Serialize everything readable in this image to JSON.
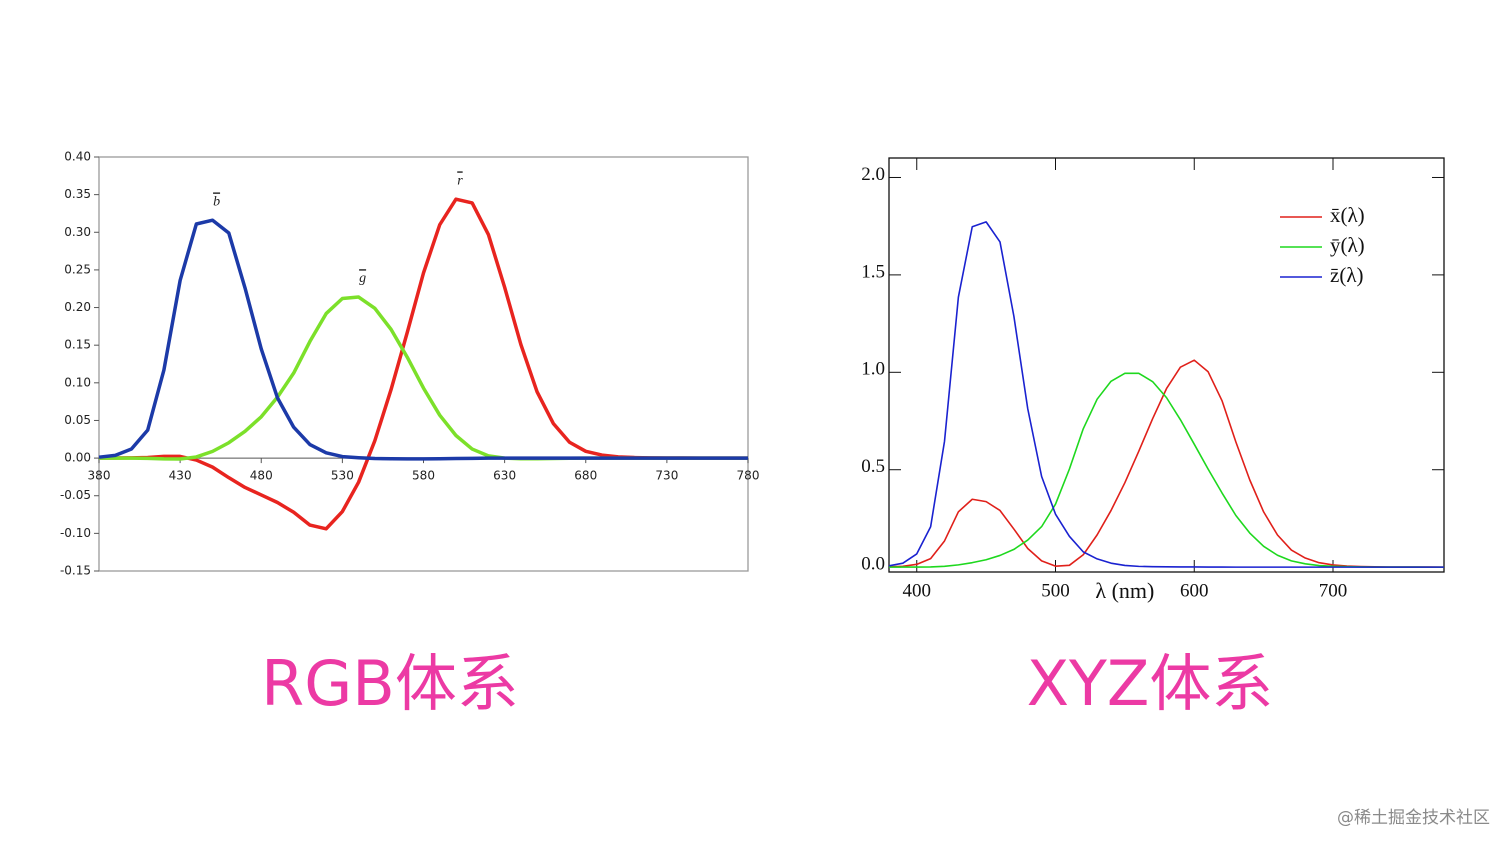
{
  "chart_data": [
    {
      "type": "line",
      "title": "RGB体系",
      "x": [
        380,
        390,
        400,
        410,
        420,
        430,
        440,
        450,
        460,
        470,
        480,
        490,
        500,
        510,
        520,
        530,
        540,
        550,
        560,
        570,
        580,
        590,
        600,
        610,
        620,
        630,
        640,
        650,
        660,
        670,
        680,
        690,
        700,
        710,
        720,
        730,
        740,
        750,
        760,
        770,
        780
      ],
      "series": [
        {
          "name": "r",
          "color": "#e8241f",
          "values": [
            3e-05,
            0.0001,
            0.0003,
            0.0008,
            0.0022,
            0.0022,
            -0.0026,
            -0.012,
            -0.026,
            -0.039,
            -0.049,
            -0.059,
            -0.072,
            -0.089,
            -0.094,
            -0.071,
            -0.032,
            0.023,
            0.091,
            0.167,
            0.246,
            0.31,
            0.344,
            0.339,
            0.297,
            0.227,
            0.151,
            0.088,
            0.046,
            0.021,
            0.009,
            0.004,
            0.0016,
            0.0007,
            0.0003,
            0.0001,
            0.0001,
            0,
            0,
            0,
            0
          ]
        },
        {
          "name": "g",
          "color": "#7ce02a",
          "values": [
            0,
            0,
            0,
            -0.0004,
            -0.0011,
            -0.0012,
            0.0015,
            0.0089,
            0.0204,
            0.0356,
            0.0549,
            0.081,
            0.113,
            0.155,
            0.192,
            0.212,
            0.214,
            0.199,
            0.171,
            0.134,
            0.093,
            0.057,
            0.03,
            0.012,
            0.003,
            0,
            -0.0009,
            -0.0008,
            -0.0005,
            -0.0002,
            -0.0001,
            0,
            0,
            0,
            0,
            0,
            0,
            0,
            0,
            0,
            0
          ]
        },
        {
          "name": "b",
          "color": "#1c3aa8",
          "values": [
            0.0012,
            0.0036,
            0.0121,
            0.0371,
            0.117,
            0.236,
            0.311,
            0.316,
            0.299,
            0.226,
            0.145,
            0.08,
            0.041,
            0.018,
            0.007,
            0.002,
            0.0005,
            -0.0006,
            -0.0009,
            -0.0011,
            -0.001,
            -0.0008,
            -0.0005,
            -0.0003,
            -0.0001,
            0,
            0,
            0,
            0,
            0,
            0,
            0,
            0,
            0,
            0,
            0,
            0,
            0,
            0,
            0,
            0
          ]
        }
      ],
      "xlim": [
        380,
        780
      ],
      "xticks": [
        380,
        430,
        480,
        530,
        580,
        630,
        680,
        730,
        780
      ],
      "ylim": [
        -0.15,
        0.4
      ],
      "yticks": [
        {
          "value": 0.4,
          "label": "0.40"
        },
        {
          "value": 0.35,
          "label": "0.35"
        },
        {
          "value": 0.3,
          "label": "0.30"
        },
        {
          "value": 0.25,
          "label": "0.25"
        },
        {
          "value": 0.2,
          "label": "0.20"
        },
        {
          "value": 0.15,
          "label": "0.15"
        },
        {
          "value": 0.1,
          "label": "0.10"
        },
        {
          "value": 0.05,
          "label": "0.05"
        },
        {
          "value": 0,
          "label": "0.00"
        },
        {
          "value": -0.05,
          "label": "-0.05"
        },
        {
          "value": -0.1,
          "label": "-0.10"
        },
        {
          "value": -0.15,
          "label": "-0.15"
        }
      ],
      "grid": false
    },
    {
      "type": "line",
      "title": "XYZ体系",
      "xlabel": "λ (nm)",
      "legend": "upper right",
      "x": [
        380,
        390,
        400,
        410,
        420,
        430,
        440,
        450,
        460,
        470,
        480,
        490,
        500,
        510,
        520,
        530,
        540,
        550,
        560,
        570,
        580,
        590,
        600,
        610,
        620,
        630,
        640,
        650,
        660,
        670,
        680,
        690,
        700,
        710,
        720,
        730,
        740,
        750,
        760,
        770,
        780
      ],
      "series": [
        {
          "name": "x̄(λ)",
          "color": "#e0201a",
          "values": [
            0.0014,
            0.0042,
            0.0143,
            0.0435,
            0.1344,
            0.2839,
            0.3483,
            0.3362,
            0.2908,
            0.1954,
            0.0956,
            0.032,
            0.0049,
            0.0093,
            0.0633,
            0.1655,
            0.2904,
            0.4334,
            0.5945,
            0.7621,
            0.9163,
            1.0263,
            1.0622,
            1.0026,
            0.8544,
            0.6424,
            0.4479,
            0.2835,
            0.1649,
            0.0874,
            0.0468,
            0.0227,
            0.0114,
            0.0058,
            0.0029,
            0.0014,
            0.0007,
            0.0003,
            0.0002,
            0.0001,
            0
          ]
        },
        {
          "name": "ȳ(λ)",
          "color": "#1ed81e",
          "values": [
            0,
            0.0001,
            0.0004,
            0.0012,
            0.004,
            0.0116,
            0.023,
            0.038,
            0.06,
            0.091,
            0.139,
            0.208,
            0.323,
            0.503,
            0.71,
            0.862,
            0.954,
            0.995,
            0.995,
            0.952,
            0.87,
            0.757,
            0.631,
            0.503,
            0.381,
            0.265,
            0.175,
            0.107,
            0.061,
            0.032,
            0.017,
            0.0082,
            0.0041,
            0.0021,
            0.001,
            0.0005,
            0.0003,
            0.0001,
            0.0001,
            0,
            0
          ]
        },
        {
          "name": "z̄(λ)",
          "color": "#1a22d0",
          "values": [
            0.0065,
            0.0201,
            0.0679,
            0.2074,
            0.6456,
            1.3856,
            1.7471,
            1.7721,
            1.6692,
            1.2876,
            0.813,
            0.4652,
            0.272,
            0.1582,
            0.0782,
            0.0422,
            0.0203,
            0.0087,
            0.0039,
            0.0021,
            0.0017,
            0.0011,
            0.0008,
            0.0003,
            0.0002,
            0,
            0,
            0,
            0,
            0,
            0,
            0,
            0,
            0,
            0,
            0,
            0,
            0,
            0,
            0,
            0
          ]
        }
      ],
      "xlim": [
        380,
        780
      ],
      "xticks": [
        400,
        500,
        600,
        700
      ],
      "ylim": [
        -0.025,
        2.1
      ],
      "yticks": [
        {
          "value": 0,
          "label": "0.0"
        },
        0.5,
        {
          "value": 1,
          "label": "1.0"
        },
        1.5,
        {
          "value": 2,
          "label": "2.0"
        }
      ],
      "grid": false
    }
  ],
  "watermark": "@稀土掘金技术社区"
}
